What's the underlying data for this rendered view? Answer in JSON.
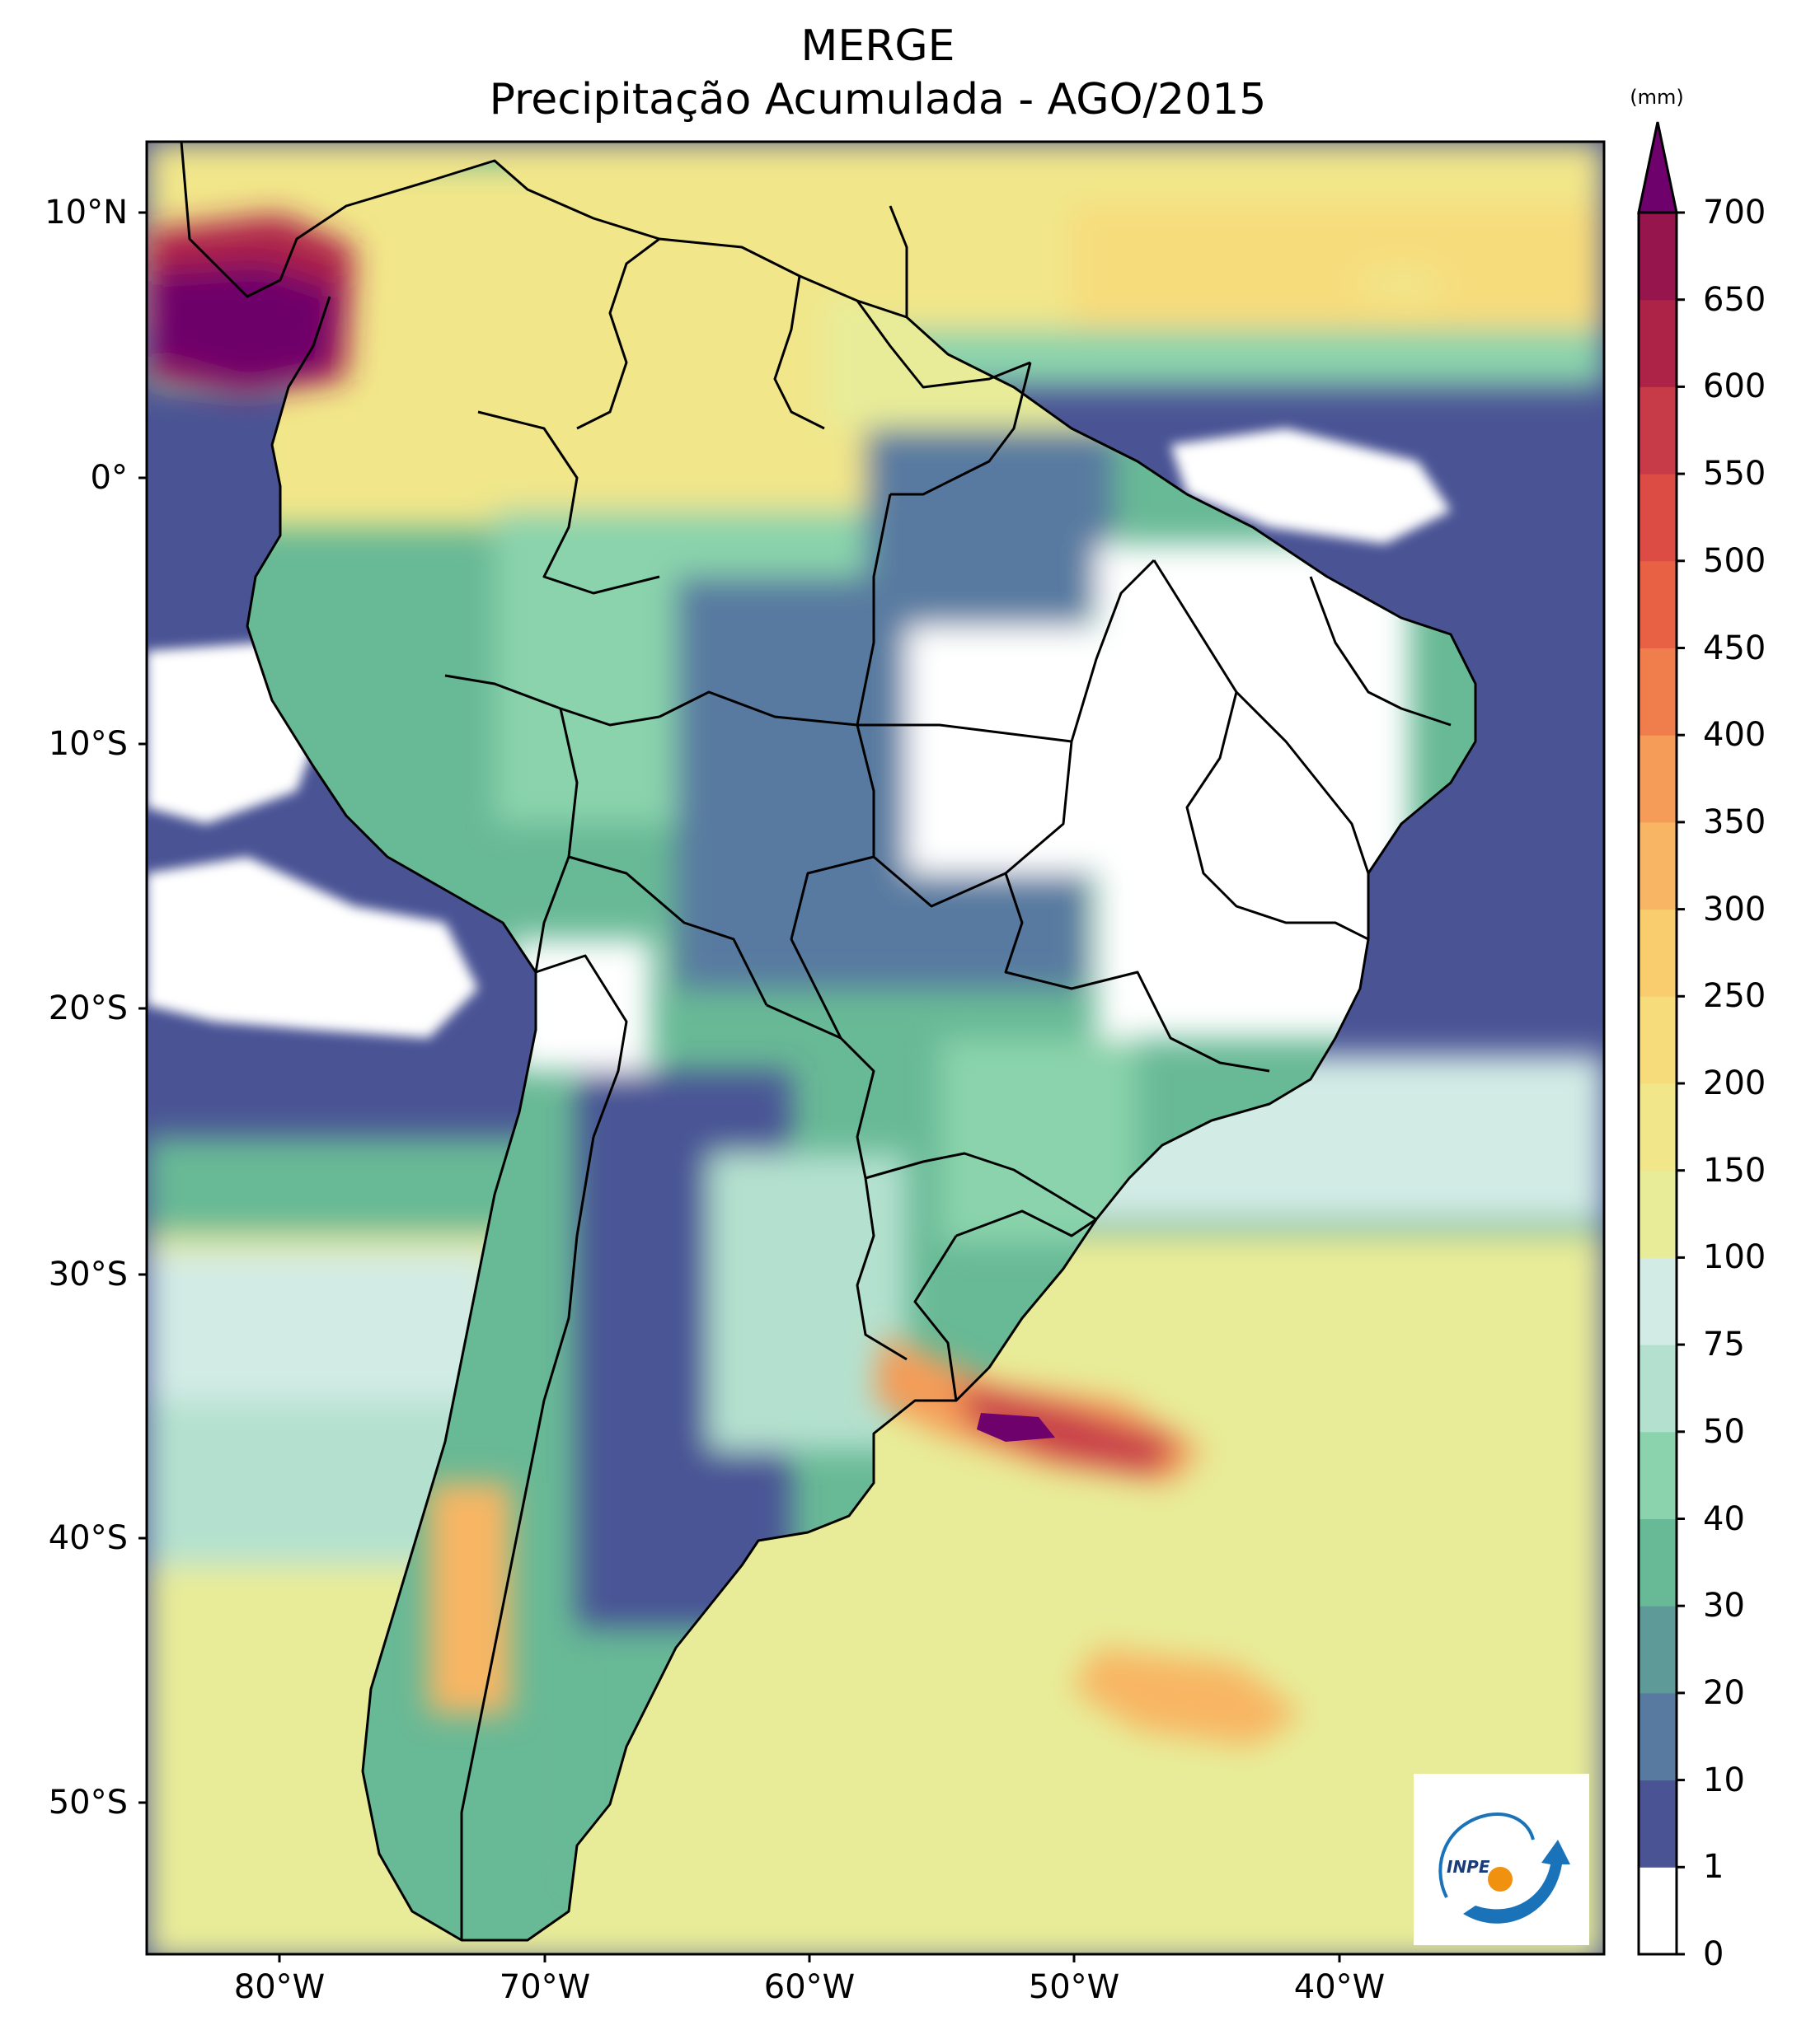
{
  "title": {
    "line1": "MERGE",
    "line2": "Precipitação Acumulada - AGO/2015"
  },
  "map": {
    "lat_ticks": [
      "10°N",
      "0°",
      "10°S",
      "20°S",
      "30°S",
      "40°S",
      "50°S"
    ],
    "lat_values": [
      10,
      0,
      -10,
      -20,
      -30,
      -40,
      -50
    ],
    "lon_ticks": [
      "80°W",
      "70°W",
      "60°W",
      "50°W",
      "40°W"
    ],
    "lon_values": [
      -80,
      -70,
      -60,
      -50,
      -40
    ],
    "extent": {
      "lon_min": -85,
      "lon_max": -30,
      "lat_min": -56,
      "lat_max": 13
    }
  },
  "colorbar": {
    "unit": "(mm)",
    "levels": [
      "0",
      "1",
      "10",
      "20",
      "30",
      "40",
      "50",
      "75",
      "100",
      "150",
      "200",
      "250",
      "300",
      "350",
      "400",
      "450",
      "500",
      "550",
      "600",
      "650",
      "700"
    ],
    "colors": [
      "#ffffff",
      "#4a5495",
      "#587aa0",
      "#5e9a97",
      "#68b996",
      "#8ad3ac",
      "#b4e1cf",
      "#d2ebe5",
      "#e8ec98",
      "#f1e68a",
      "#f7dc7b",
      "#f9cd6e",
      "#f8b664",
      "#f59c58",
      "#f07e4c",
      "#e96145",
      "#dc4c45",
      "#c73a48",
      "#ad2348",
      "#95154c",
      "#6e016b"
    ]
  },
  "logo": {
    "text": "INPE"
  },
  "colors": {
    "ocean_low": "#4a5495",
    "ocean_mid": "#68b996",
    "ocean_high": "#e8ec98",
    "heavy": "#f07e4c",
    "extreme": "#6e016b",
    "border": "#000000"
  }
}
